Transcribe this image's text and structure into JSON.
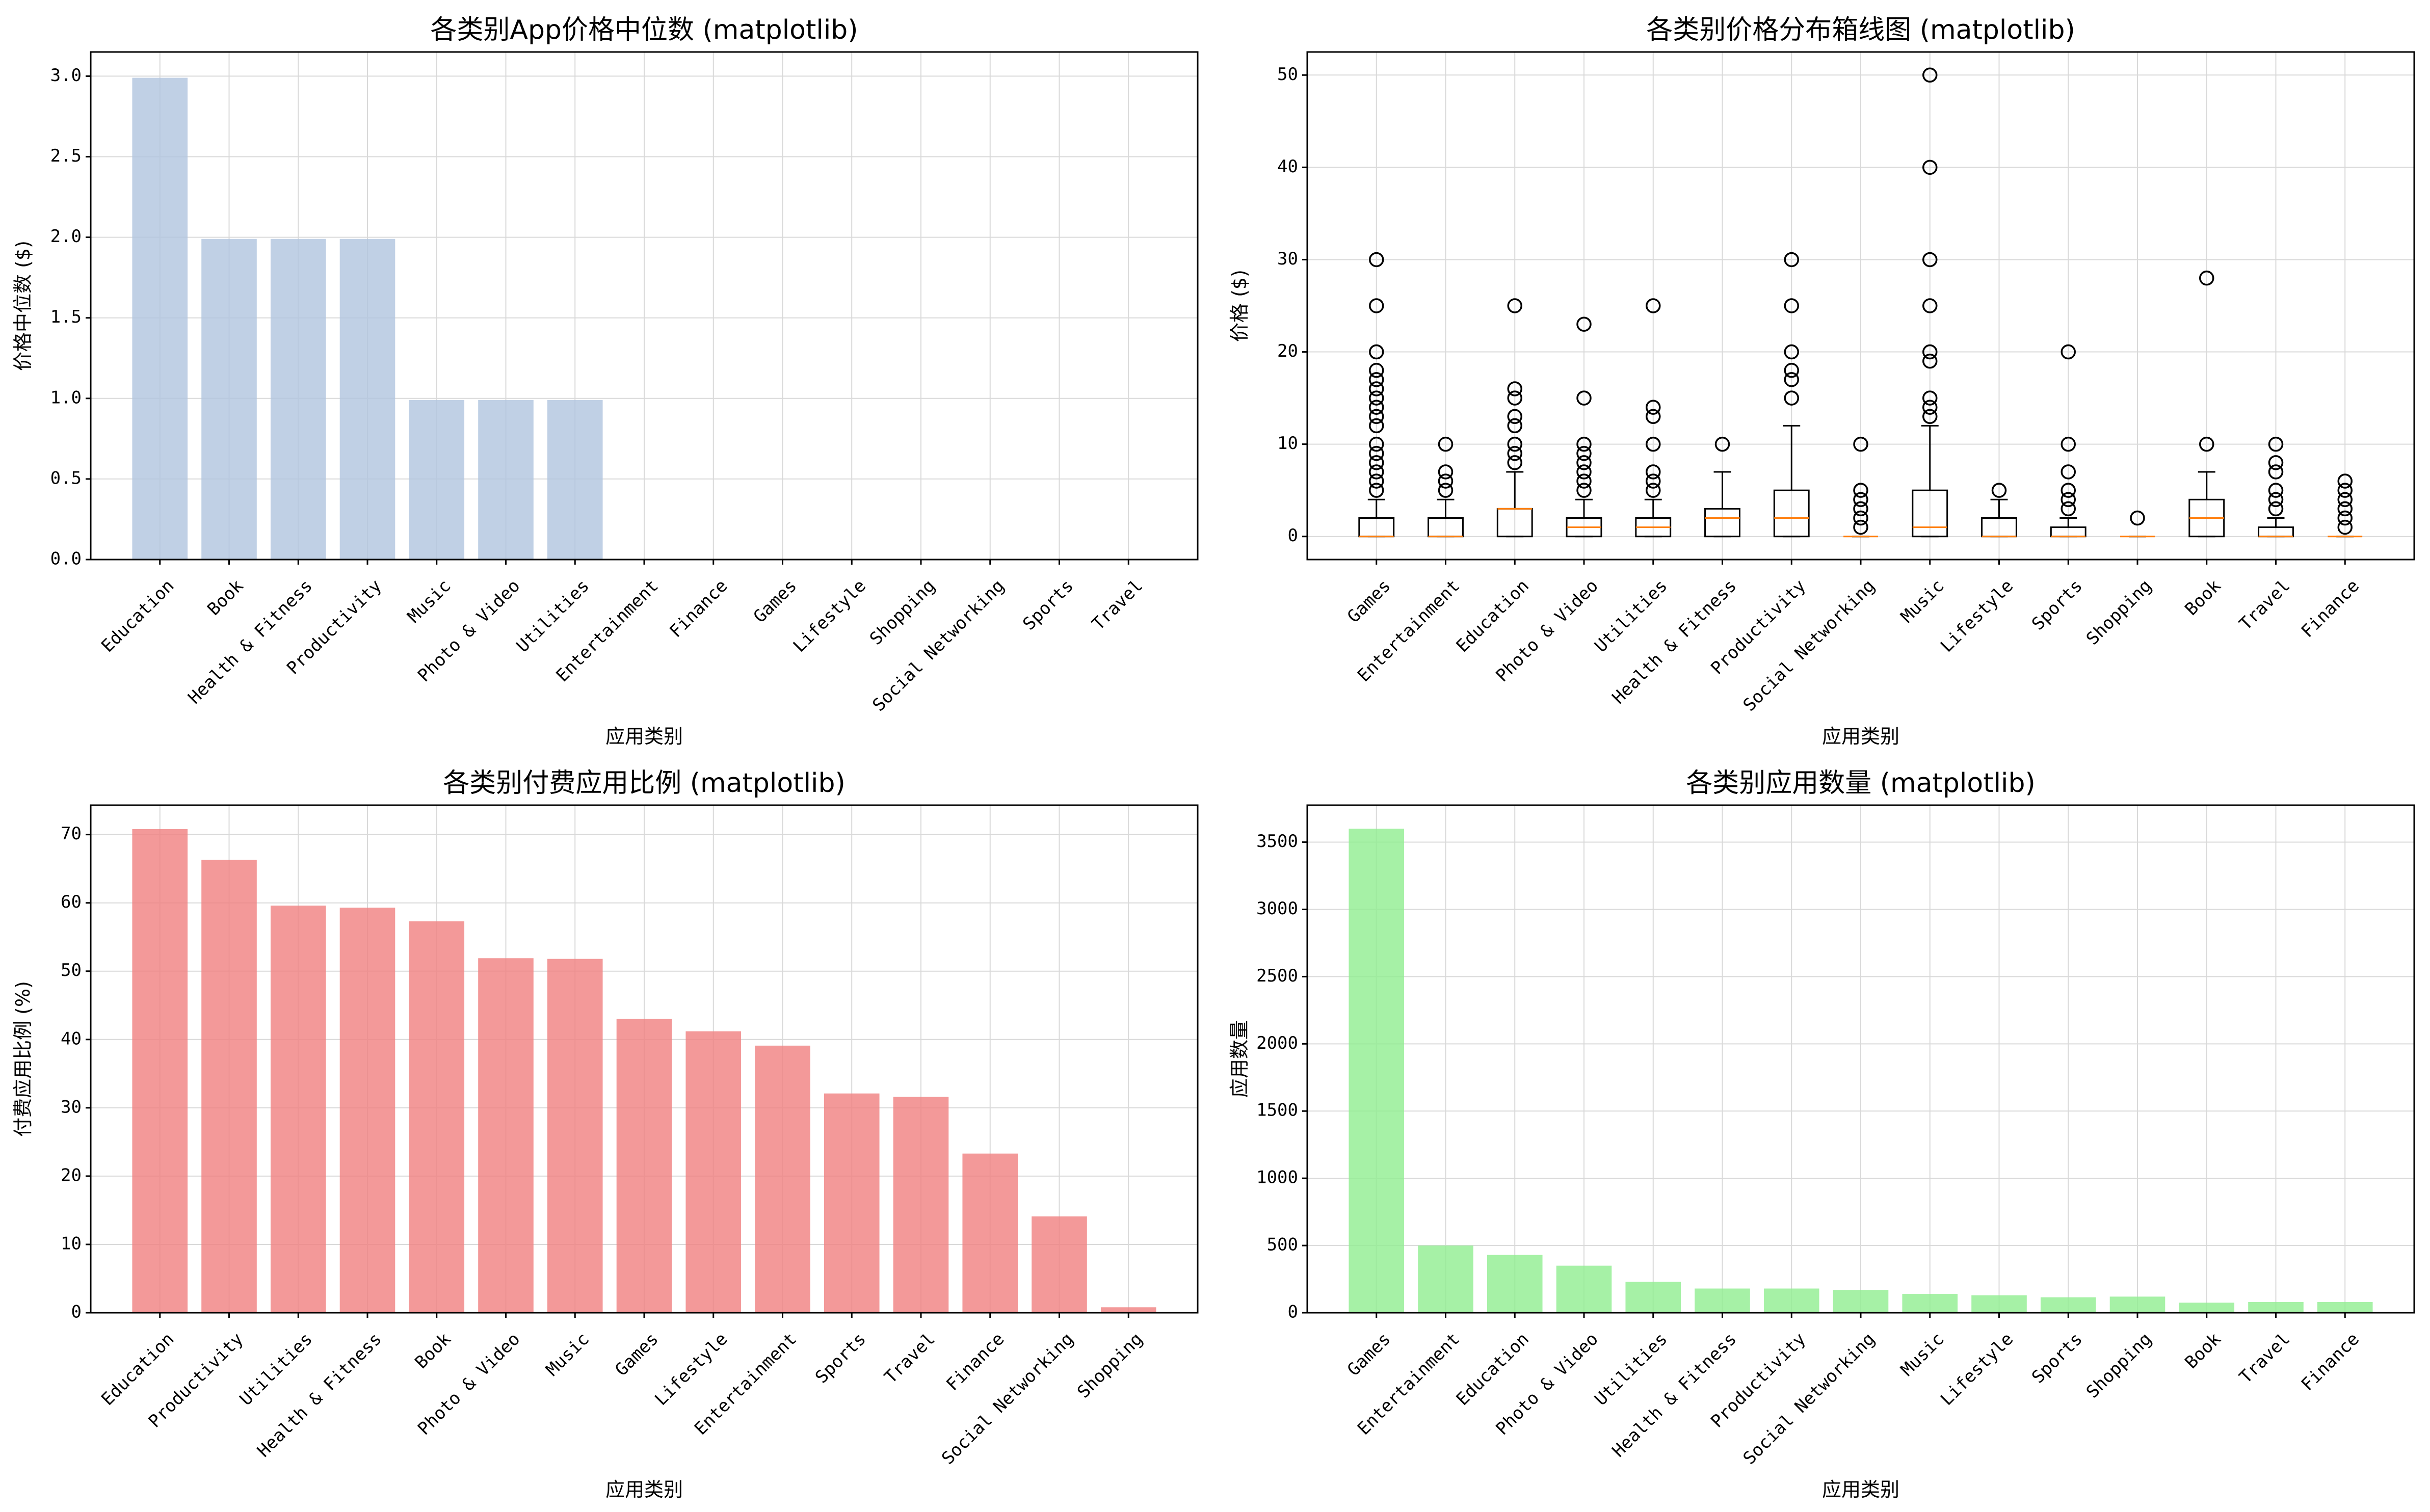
{
  "colors": {
    "median_bar": "#b0c4de",
    "paid_bar": "#f08080",
    "count_bar": "#90ee90",
    "box_median": "#ff7f0e",
    "grid": "#d9d9d9",
    "axis": "#000000"
  },
  "chart_data": [
    {
      "type": "bar",
      "title": "各类别App价格中位数 (matplotlib)",
      "xlabel": "应用类别",
      "ylabel": "价格中位数 ($)",
      "categories": [
        "Education",
        "Book",
        "Health & Fitness",
        "Productivity",
        "Music",
        "Photo & Video",
        "Utilities",
        "Entertainment",
        "Finance",
        "Games",
        "Lifestyle",
        "Shopping",
        "Social Networking",
        "Sports",
        "Travel"
      ],
      "values": [
        2.99,
        1.99,
        1.99,
        1.99,
        0.99,
        0.99,
        0.99,
        0,
        0,
        0,
        0,
        0,
        0,
        0,
        0
      ],
      "ylim": [
        0,
        3.15
      ],
      "yticks": [
        0.0,
        0.5,
        1.0,
        1.5,
        2.0,
        2.5,
        3.0
      ],
      "ytick_labels": [
        "0.0",
        "0.5",
        "1.0",
        "1.5",
        "2.0",
        "2.5",
        "3.0"
      ],
      "grid": true,
      "color": "#b0c4de"
    },
    {
      "type": "box",
      "title": "各类别价格分布箱线图 (matplotlib)",
      "xlabel": "应用类别",
      "ylabel": "价格 ($)",
      "categories": [
        "Games",
        "Entertainment",
        "Education",
        "Photo & Video",
        "Utilities",
        "Health & Fitness",
        "Productivity",
        "Social Networking",
        "Music",
        "Lifestyle",
        "Sports",
        "Shopping",
        "Book",
        "Travel",
        "Finance"
      ],
      "boxes": [
        {
          "q1": 0,
          "median": 0,
          "q3": 2,
          "whislo": 0,
          "whishi": 4,
          "fliers": [
            5,
            6,
            7,
            8,
            9,
            10,
            12,
            13,
            14,
            15,
            16,
            17,
            18,
            20,
            25,
            30
          ]
        },
        {
          "q1": 0,
          "median": 0,
          "q3": 2,
          "whislo": 0,
          "whishi": 4,
          "fliers": [
            5,
            6,
            7,
            10
          ]
        },
        {
          "q1": 0,
          "median": 3,
          "q3": 3,
          "whislo": 0,
          "whishi": 7,
          "fliers": [
            8,
            9,
            10,
            12,
            13,
            15,
            16,
            25
          ]
        },
        {
          "q1": 0,
          "median": 1,
          "q3": 2,
          "whislo": 0,
          "whishi": 4,
          "fliers": [
            5,
            6,
            7,
            8,
            9,
            10,
            15,
            23
          ]
        },
        {
          "q1": 0,
          "median": 1,
          "q3": 2,
          "whislo": 0,
          "whishi": 4,
          "fliers": [
            5,
            6,
            7,
            10,
            13,
            14,
            25
          ]
        },
        {
          "q1": 0,
          "median": 2,
          "q3": 3,
          "whislo": 0,
          "whishi": 7,
          "fliers": [
            10
          ]
        },
        {
          "q1": 0,
          "median": 2,
          "q3": 5,
          "whislo": 0,
          "whishi": 12,
          "fliers": [
            15,
            17,
            18,
            20,
            25,
            30
          ]
        },
        {
          "q1": 0,
          "median": 0,
          "q3": 0,
          "whislo": 0,
          "whishi": 0,
          "fliers": [
            1,
            2,
            3,
            4,
            5,
            10
          ]
        },
        {
          "q1": 0,
          "median": 1,
          "q3": 5,
          "whislo": 0,
          "whishi": 12,
          "fliers": [
            13,
            14,
            15,
            19,
            20,
            25,
            30,
            40,
            50
          ]
        },
        {
          "q1": 0,
          "median": 0,
          "q3": 2,
          "whislo": 0,
          "whishi": 4,
          "fliers": [
            5
          ]
        },
        {
          "q1": 0,
          "median": 0,
          "q3": 1,
          "whislo": 0,
          "whishi": 2,
          "fliers": [
            3,
            4,
            5,
            7,
            10,
            20
          ]
        },
        {
          "q1": 0,
          "median": 0,
          "q3": 0,
          "whislo": 0,
          "whishi": 0,
          "fliers": [
            2
          ]
        },
        {
          "q1": 0,
          "median": 2,
          "q3": 4,
          "whislo": 0,
          "whishi": 7,
          "fliers": [
            10,
            28
          ]
        },
        {
          "q1": 0,
          "median": 0,
          "q3": 1,
          "whislo": 0,
          "whishi": 2,
          "fliers": [
            3,
            4,
            5,
            7,
            8,
            10
          ]
        },
        {
          "q1": 0,
          "median": 0,
          "q3": 0,
          "whislo": 0,
          "whishi": 0,
          "fliers": [
            1,
            2,
            3,
            4,
            5,
            6
          ]
        }
      ],
      "ylim": [
        -2.5,
        52.5
      ],
      "yticks": [
        0,
        10,
        20,
        30,
        40,
        50
      ],
      "ytick_labels": [
        "0",
        "10",
        "20",
        "30",
        "40",
        "50"
      ],
      "grid": true
    },
    {
      "type": "bar",
      "title": "各类别付费应用比例 (matplotlib)",
      "xlabel": "应用类别",
      "ylabel": "付费应用比例 (%)",
      "categories": [
        "Education",
        "Productivity",
        "Utilities",
        "Health & Fitness",
        "Book",
        "Photo & Video",
        "Music",
        "Games",
        "Lifestyle",
        "Entertainment",
        "Sports",
        "Travel",
        "Finance",
        "Social Networking",
        "Shopping"
      ],
      "values": [
        70.8,
        66.3,
        59.6,
        59.3,
        57.3,
        51.9,
        51.8,
        43.0,
        41.2,
        39.1,
        32.1,
        31.6,
        23.3,
        14.1,
        0.8
      ],
      "ylim": [
        0,
        74.3
      ],
      "yticks": [
        0,
        10,
        20,
        30,
        40,
        50,
        60,
        70
      ],
      "ytick_labels": [
        "0",
        "10",
        "20",
        "30",
        "40",
        "50",
        "60",
        "70"
      ],
      "grid": true,
      "color": "#f08080"
    },
    {
      "type": "bar",
      "title": "各类别应用数量 (matplotlib)",
      "xlabel": "应用类别",
      "ylabel": "应用数量",
      "categories": [
        "Games",
        "Entertainment",
        "Education",
        "Photo & Video",
        "Utilities",
        "Health & Fitness",
        "Productivity",
        "Social Networking",
        "Music",
        "Lifestyle",
        "Sports",
        "Shopping",
        "Book",
        "Travel",
        "Finance"
      ],
      "values": [
        3600,
        500,
        430,
        350,
        230,
        180,
        180,
        170,
        140,
        130,
        115,
        120,
        75,
        80,
        80
      ],
      "ylim": [
        0,
        3775
      ],
      "yticks": [
        0,
        500,
        1000,
        1500,
        2000,
        2500,
        3000,
        3500
      ],
      "ytick_labels": [
        "0",
        "500",
        "1000",
        "1500",
        "2000",
        "2500",
        "3000",
        "3500"
      ],
      "grid": true,
      "color": "#90ee90"
    }
  ]
}
